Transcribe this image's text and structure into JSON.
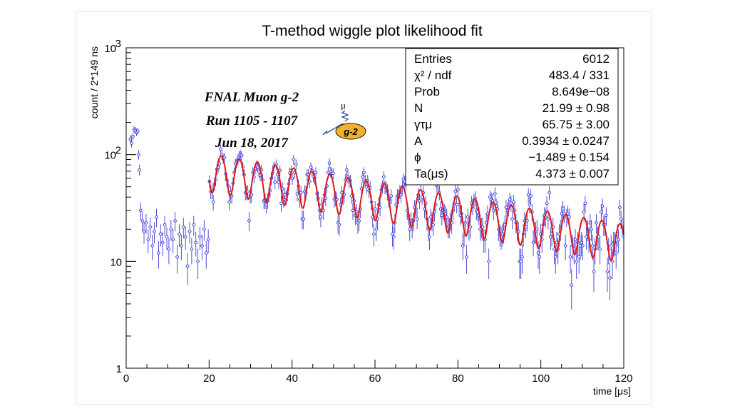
{
  "chart_data": {
    "type": "scatter",
    "title": "T-method wiggle plot likelihood fit",
    "xlabel": "time [μs]",
    "ylabel": "count / 2*149 ns",
    "xlim": [
      0,
      120
    ],
    "ylim": [
      1,
      1000
    ],
    "yscale": "log",
    "x_ticks": [
      "0",
      "20",
      "40",
      "60",
      "80",
      "100",
      "120"
    ],
    "y_ticks": [
      {
        "label": "1",
        "value": 1
      },
      {
        "label": "10",
        "value": 10
      },
      {
        "label": "10",
        "sup": "2",
        "value": 100
      },
      {
        "label": "10",
        "sup": "3",
        "value": 1000
      }
    ],
    "series": [
      {
        "name": "data",
        "style": "points with error bars",
        "color": "#3a3ad8",
        "description": "binned muon decay counts, 6012 entries"
      },
      {
        "name": "fit",
        "style": "line",
        "color": "#e01818",
        "function": "N*exp(-t/gamma_tau)*(1+A*cos(omega_a*t+phi))",
        "fit_range": [
          20,
          120
        ]
      }
    ],
    "early_points": [
      [
        1.0,
        140
      ],
      [
        1.3,
        128
      ],
      [
        1.6,
        148
      ],
      [
        1.9,
        172
      ],
      [
        2.2,
        168
      ],
      [
        2.5,
        162
      ],
      [
        2.8,
        166
      ],
      [
        3.0,
        100
      ],
      [
        3.2,
        72
      ],
      [
        3.5,
        30
      ],
      [
        3.9,
        24
      ],
      [
        4.3,
        19
      ],
      [
        4.8,
        23
      ],
      [
        5.3,
        16
      ],
      [
        5.8,
        21
      ],
      [
        6.3,
        14
      ],
      [
        6.8,
        19
      ],
      [
        7.3,
        26
      ],
      [
        7.8,
        12
      ],
      [
        8.3,
        18
      ],
      [
        8.8,
        15
      ],
      [
        9.3,
        22
      ],
      [
        9.8,
        17
      ],
      [
        10.3,
        13
      ],
      [
        10.8,
        20
      ],
      [
        11.3,
        16
      ],
      [
        11.8,
        24
      ],
      [
        12.3,
        11
      ],
      [
        12.8,
        18
      ],
      [
        13.3,
        14
      ],
      [
        13.8,
        21
      ],
      [
        14.3,
        17
      ],
      [
        14.8,
        9
      ],
      [
        15.3,
        19
      ],
      [
        15.8,
        13
      ],
      [
        16.3,
        22
      ],
      [
        16.8,
        15
      ],
      [
        17.3,
        10
      ],
      [
        17.8,
        17
      ],
      [
        18.3,
        14
      ],
      [
        18.8,
        20
      ],
      [
        19.3,
        12
      ],
      [
        19.8,
        16
      ]
    ],
    "stats": [
      {
        "label": "Entries",
        "value": "6012"
      },
      {
        "label": "χ² / ndf",
        "value": "483.4 / 331"
      },
      {
        "label": "Prob",
        "value": "8.649e−08"
      },
      {
        "label": "N",
        "value": "21.99 ± 0.98"
      },
      {
        "label": "γτμ",
        "value": "65.75 ± 3.00"
      },
      {
        "label": "A",
        "value": "0.3934 ± 0.0247"
      },
      {
        "label": "ϕ",
        "value": "−1.489 ± 0.154"
      },
      {
        "label": "Ta(μs)",
        "value": "4.373 ± 0.007"
      }
    ],
    "fit_params": {
      "N": 21.99,
      "gamma_tau": 65.75,
      "A": 0.3934,
      "phi": -1.489,
      "T_a": 4.373
    },
    "annotation": {
      "lines": [
        "FNAL Muon g-2",
        "Run 1105 - 1107",
        "Jun 18, 2017"
      ]
    },
    "logo": {
      "text": "g-2",
      "symbol": "μ",
      "color": "#f2b12a"
    }
  }
}
